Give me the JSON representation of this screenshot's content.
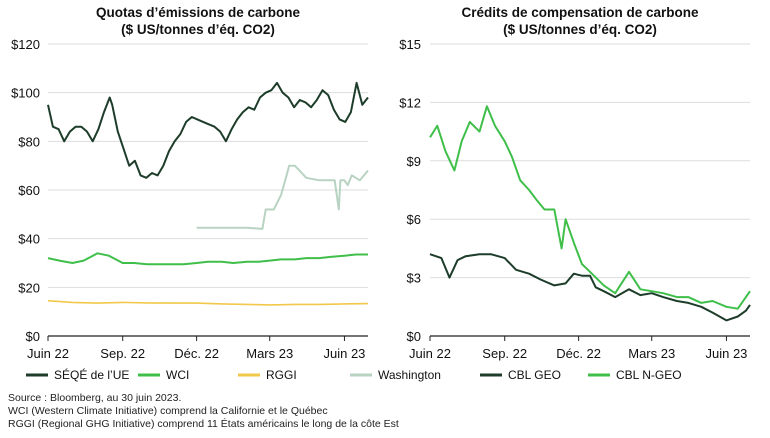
{
  "charts": [
    {
      "title_line1": "Quotas d’émissions de carbone",
      "title_line2": "($ US/tonnes d’éq. CO2)",
      "y_tick_labels": [
        "$0",
        "$20",
        "$40",
        "$60",
        "$80",
        "$100",
        "$120"
      ],
      "x_tick_labels": [
        "Juin 22",
        "Sep. 22",
        "Déc. 22",
        "Mars 23",
        "Juin 23"
      ],
      "legend": [
        "SÉQÉ de l’UE",
        "WCI",
        "RGGI",
        "Washington"
      ]
    },
    {
      "title_line1": "Crédits de compensation de carbone",
      "title_line2": "($ US/tonnes d’éq. CO2)",
      "y_tick_labels": [
        "$0",
        "$3",
        "$6",
        "$9",
        "$12",
        "$15"
      ],
      "x_tick_labels": [
        "Juin 22",
        "Sep. 22",
        "Déc. 22",
        "Mars 23",
        "Juin 23"
      ],
      "legend": [
        "CBL GEO",
        "CBL N-GEO"
      ]
    }
  ],
  "footnotes": [
    "Source : Bloomberg, au 30 juin 2023.",
    "WCI (Western Climate Initiative) comprend la Californie et le Québec",
    "RGGI (Regional GHG Initiative) comprend 11 États américains le long de la côte Est"
  ],
  "colors": {
    "eu": "#1d3d2a",
    "wci": "#3fbf4a",
    "rggi": "#f2c84b",
    "washington": "#b9d3c3",
    "cbl_geo": "#1d3d2a",
    "cbl_ngeo": "#3fbf4a",
    "grid": "#dddddd",
    "axis": "#222222"
  },
  "chart_data": [
    {
      "type": "line",
      "title": "Quotas d’émissions de carbone ($ US/tonnes d’éq. CO2)",
      "x_range": [
        "2022-06-01",
        "2023-06-30"
      ],
      "x_ticks": [
        "Juin 22",
        "Sep. 22",
        "Déc. 22",
        "Mars 23",
        "Juin 23"
      ],
      "ylim": [
        0,
        120
      ],
      "grid": true,
      "legend_position": "bottom",
      "series": [
        {
          "name": "SÉQÉ de l’UE",
          "x": [
            "2022-06-01",
            "2022-06-07",
            "2022-06-14",
            "2022-06-21",
            "2022-06-28",
            "2022-07-05",
            "2022-07-12",
            "2022-07-19",
            "2022-07-26",
            "2022-08-02",
            "2022-08-09",
            "2022-08-16",
            "2022-08-19",
            "2022-08-26",
            "2022-09-02",
            "2022-09-09",
            "2022-09-16",
            "2022-09-23",
            "2022-09-30",
            "2022-10-07",
            "2022-10-14",
            "2022-10-21",
            "2022-10-28",
            "2022-11-04",
            "2022-11-11",
            "2022-11-18",
            "2022-11-25",
            "2022-12-02",
            "2022-12-09",
            "2022-12-16",
            "2022-12-23",
            "2022-12-30",
            "2023-01-06",
            "2023-01-13",
            "2023-01-20",
            "2023-01-27",
            "2023-02-03",
            "2023-02-10",
            "2023-02-17",
            "2023-02-24",
            "2023-03-03",
            "2023-03-10",
            "2023-03-17",
            "2023-03-24",
            "2023-03-31",
            "2023-04-07",
            "2023-04-14",
            "2023-04-21",
            "2023-04-28",
            "2023-05-05",
            "2023-05-12",
            "2023-05-19",
            "2023-05-26",
            "2023-06-02",
            "2023-06-09",
            "2023-06-16",
            "2023-06-23",
            "2023-06-30"
          ],
          "y": [
            95,
            86,
            85,
            80,
            84,
            86,
            86,
            84,
            80,
            85,
            92,
            98,
            95,
            84,
            77,
            70,
            72,
            66,
            65,
            67,
            66,
            70,
            76,
            80,
            83,
            88,
            90,
            89,
            88,
            87,
            86,
            84,
            80,
            85,
            89,
            92,
            94,
            93,
            98,
            100,
            101,
            104,
            100,
            98,
            94,
            97,
            96,
            94,
            97,
            101,
            99,
            93,
            89,
            88,
            92,
            104,
            95,
            98
          ]
        },
        {
          "name": "WCI",
          "x": [
            "2022-06-01",
            "2022-06-15",
            "2022-07-01",
            "2022-07-15",
            "2022-08-01",
            "2022-08-15",
            "2022-09-01",
            "2022-09-15",
            "2022-10-01",
            "2022-10-15",
            "2022-11-01",
            "2022-11-15",
            "2022-12-01",
            "2022-12-15",
            "2023-01-01",
            "2023-01-15",
            "2023-02-01",
            "2023-02-15",
            "2023-03-01",
            "2023-03-15",
            "2023-04-01",
            "2023-04-15",
            "2023-05-01",
            "2023-05-15",
            "2023-06-01",
            "2023-06-15",
            "2023-06-30"
          ],
          "y": [
            32,
            31,
            30,
            31,
            34,
            33,
            30,
            30,
            29.5,
            29.5,
            29.5,
            29.5,
            30,
            30.5,
            30.5,
            30,
            30.5,
            30.5,
            31,
            31.5,
            31.5,
            32,
            32,
            32.5,
            33,
            33.5,
            33.5
          ]
        },
        {
          "name": "RGGI",
          "x": [
            "2022-06-01",
            "2022-07-01",
            "2022-08-01",
            "2022-09-01",
            "2022-10-01",
            "2022-11-01",
            "2022-12-01",
            "2023-01-01",
            "2023-02-01",
            "2023-03-01",
            "2023-04-01",
            "2023-05-01",
            "2023-06-01",
            "2023-06-30"
          ],
          "y": [
            14.5,
            13.8,
            13.5,
            13.8,
            13.6,
            13.5,
            13.5,
            13.2,
            13,
            12.8,
            13,
            13,
            13.2,
            13.3
          ]
        },
        {
          "name": "Washington",
          "x": [
            "2022-12-01",
            "2023-01-01",
            "2023-02-01",
            "2023-02-20",
            "2023-02-24",
            "2023-02-28",
            "2023-03-06",
            "2023-03-15",
            "2023-03-20",
            "2023-03-25",
            "2023-04-01",
            "2023-04-15",
            "2023-05-01",
            "2023-05-05",
            "2023-05-20",
            "2023-05-25",
            "2023-05-27",
            "2023-06-01",
            "2023-06-05",
            "2023-06-10",
            "2023-06-20",
            "2023-06-30"
          ],
          "y": [
            44.5,
            44.5,
            44.5,
            44,
            52,
            52,
            52,
            58,
            64,
            70,
            70,
            65,
            64,
            64,
            64,
            52,
            64,
            64,
            62,
            66,
            64,
            68
          ]
        }
      ]
    },
    {
      "type": "line",
      "title": "Crédits de compensation de carbone ($ US/tonnes d’éq. CO2)",
      "x_range": [
        "2022-06-01",
        "2023-06-30"
      ],
      "x_ticks": [
        "Juin 22",
        "Sep. 22",
        "Déc. 22",
        "Mars 23",
        "Juin 23"
      ],
      "ylim": [
        0,
        15
      ],
      "grid": true,
      "legend_position": "bottom",
      "series": [
        {
          "name": "CBL GEO",
          "x": [
            "2022-06-01",
            "2022-06-15",
            "2022-06-25",
            "2022-07-05",
            "2022-07-15",
            "2022-08-01",
            "2022-08-15",
            "2022-09-01",
            "2022-09-15",
            "2022-10-01",
            "2022-10-15",
            "2022-11-01",
            "2022-11-15",
            "2022-11-25",
            "2022-12-05",
            "2022-12-15",
            "2022-12-22",
            "2023-01-01",
            "2023-01-15",
            "2023-02-01",
            "2023-02-15",
            "2023-03-01",
            "2023-03-15",
            "2023-04-01",
            "2023-04-15",
            "2023-05-01",
            "2023-05-15",
            "2023-06-01",
            "2023-06-15",
            "2023-06-25",
            "2023-06-30"
          ],
          "y": [
            4.2,
            4.0,
            3.0,
            3.9,
            4.1,
            4.2,
            4.2,
            4.0,
            3.4,
            3.2,
            2.9,
            2.6,
            2.7,
            3.2,
            3.1,
            3.1,
            2.5,
            2.3,
            2.0,
            2.4,
            2.1,
            2.2,
            2.0,
            1.8,
            1.7,
            1.5,
            1.2,
            0.8,
            1.0,
            1.3,
            1.6
          ]
        },
        {
          "name": "CBL N-GEO",
          "x": [
            "2022-06-01",
            "2022-06-10",
            "2022-06-20",
            "2022-07-01",
            "2022-07-10",
            "2022-07-20",
            "2022-08-01",
            "2022-08-10",
            "2022-08-20",
            "2022-09-01",
            "2022-09-10",
            "2022-09-20",
            "2022-10-01",
            "2022-10-10",
            "2022-10-20",
            "2022-11-01",
            "2022-11-10",
            "2022-11-15",
            "2022-11-25",
            "2022-12-05",
            "2022-12-15",
            "2023-01-01",
            "2023-01-15",
            "2023-02-01",
            "2023-02-15",
            "2023-03-01",
            "2023-03-15",
            "2023-04-01",
            "2023-04-15",
            "2023-05-01",
            "2023-05-15",
            "2023-06-01",
            "2023-06-15",
            "2023-06-30"
          ],
          "y": [
            10.2,
            10.8,
            9.5,
            8.5,
            10.0,
            11.0,
            10.5,
            11.8,
            10.8,
            10.0,
            9.2,
            8.0,
            7.5,
            7.0,
            6.5,
            6.5,
            4.5,
            6.0,
            4.8,
            3.7,
            3.3,
            2.6,
            2.2,
            3.3,
            2.4,
            2.3,
            2.2,
            2.0,
            2.0,
            1.7,
            1.8,
            1.5,
            1.4,
            2.3
          ]
        }
      ]
    }
  ]
}
